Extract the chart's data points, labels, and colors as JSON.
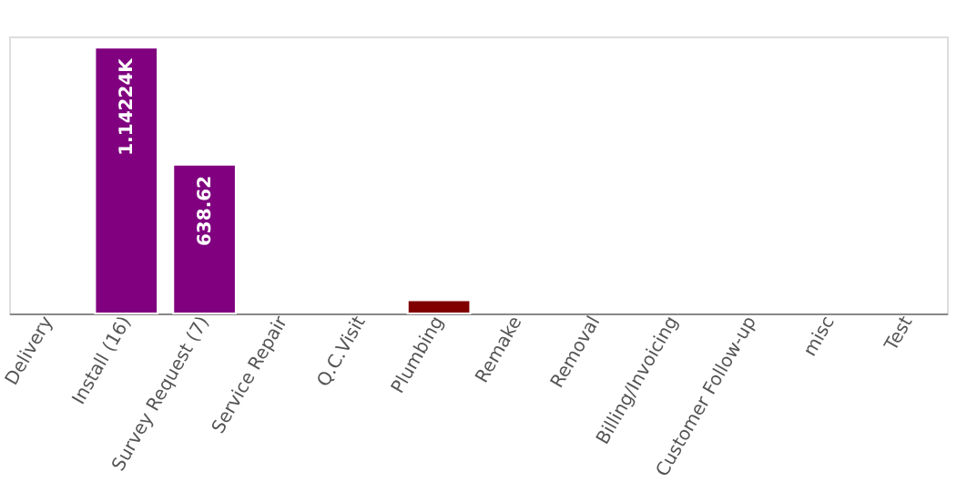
{
  "chart_data": {
    "type": "bar",
    "categories": [
      "Delivery",
      "Install (16)",
      "Survey Request (7)",
      "Service Repair",
      "Q.C.Visit",
      "Plumbing",
      "Remake",
      "Removal",
      "Billing/Invoicing",
      "Customer Follow-up",
      "misc",
      "Test"
    ],
    "values": [
      null,
      1142.24,
      638.62,
      null,
      null,
      57,
      null,
      null,
      null,
      null,
      null,
      null
    ],
    "colors": [
      "#800080",
      "#800080",
      "#800080",
      "#800080",
      "#800080",
      "#800000",
      "#800080",
      "#800080",
      "#800080",
      "#800080",
      "#800080",
      "#800080"
    ],
    "value_labels": [
      null,
      "1.14224K",
      "638.62",
      null,
      null,
      null,
      null,
      null,
      null,
      null,
      null,
      null
    ],
    "ylim": [
      0,
      1190
    ],
    "tick_labels": "x"
  }
}
